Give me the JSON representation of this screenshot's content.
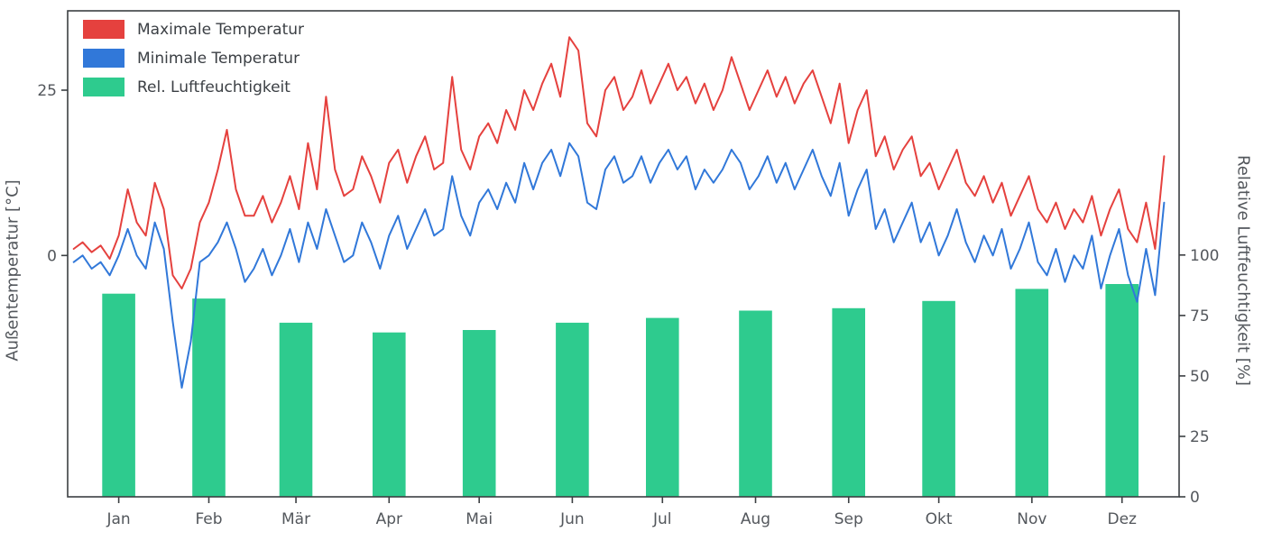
{
  "styles": {
    "background": "#ffffff",
    "spine_color": "#3b3f42",
    "tick_color": "#53575c",
    "text_color": "#53575c"
  },
  "chart_data": {
    "type": "mixed",
    "subtypes": [
      "line",
      "line",
      "bar"
    ],
    "title": "",
    "xlabel": "",
    "ylabel_left": "Außentemperatur [°C]",
    "ylabel_right": "Relative Luftfeuchtigkeit [%]",
    "legend_position": "upper left",
    "grid": false,
    "months": [
      "Jan",
      "Feb",
      "Mär",
      "Apr",
      "Mai",
      "Jun",
      "Jul",
      "Aug",
      "Sep",
      "Okt",
      "Nov",
      "Dez"
    ],
    "month_center_days": [
      15,
      45,
      74,
      105,
      135,
      166,
      196,
      227,
      258,
      288,
      319,
      349
    ],
    "x_domain_days": [
      -2,
      368
    ],
    "ylim_left": [
      -36.5,
      37
    ],
    "yticks_left": [
      0,
      25
    ],
    "ylim_right": [
      0,
      201
    ],
    "yticks_right": [
      0,
      25,
      50,
      75,
      100
    ],
    "day_step": 3,
    "bar_width_days": 11,
    "series": [
      {
        "name": "Maximale Temperatur",
        "type": "line",
        "axis": "left",
        "color": "#e5413e",
        "values": [
          1,
          2,
          0.5,
          1.5,
          -0.5,
          3,
          10,
          5,
          3,
          11,
          7,
          -3,
          -5,
          -2,
          5,
          8,
          13,
          19,
          10,
          6,
          6,
          9,
          5,
          8,
          12,
          7,
          17,
          10,
          24,
          13,
          9,
          10,
          15,
          12,
          8,
          14,
          16,
          11,
          15,
          18,
          13,
          14,
          27,
          16,
          13,
          18,
          20,
          17,
          22,
          19,
          25,
          22,
          26,
          29,
          24,
          33,
          31,
          20,
          18,
          25,
          27,
          22,
          24,
          28,
          23,
          26,
          29,
          25,
          27,
          23,
          26,
          22,
          25,
          30,
          26,
          22,
          25,
          28,
          24,
          27,
          23,
          26,
          28,
          24,
          20,
          26,
          17,
          22,
          25,
          15,
          18,
          13,
          16,
          18,
          12,
          14,
          10,
          13,
          16,
          11,
          9,
          12,
          8,
          11,
          6,
          9,
          12,
          7,
          5,
          8,
          4,
          7,
          5,
          9,
          3,
          7,
          10,
          4,
          2,
          8,
          1,
          15
        ]
      },
      {
        "name": "Minimale Temperatur",
        "type": "line",
        "axis": "left",
        "color": "#3178d9",
        "values": [
          -1,
          0,
          -2,
          -1,
          -3,
          0,
          4,
          0,
          -2,
          5,
          1,
          -10,
          -20,
          -13,
          -1,
          0,
          2,
          5,
          1,
          -4,
          -2,
          1,
          -3,
          0,
          4,
          -1,
          5,
          1,
          7,
          3,
          -1,
          0,
          5,
          2,
          -2,
          3,
          6,
          1,
          4,
          7,
          3,
          4,
          12,
          6,
          3,
          8,
          10,
          7,
          11,
          8,
          14,
          10,
          14,
          16,
          12,
          17,
          15,
          8,
          7,
          13,
          15,
          11,
          12,
          15,
          11,
          14,
          16,
          13,
          15,
          10,
          13,
          11,
          13,
          16,
          14,
          10,
          12,
          15,
          11,
          14,
          10,
          13,
          16,
          12,
          9,
          14,
          6,
          10,
          13,
          4,
          7,
          2,
          5,
          8,
          2,
          5,
          0,
          3,
          7,
          2,
          -1,
          3,
          0,
          4,
          -2,
          1,
          5,
          -1,
          -3,
          1,
          -4,
          0,
          -2,
          3,
          -5,
          0,
          4,
          -3,
          -7,
          1,
          -6,
          8
        ]
      },
      {
        "name": "Rel. Luftfeuchtigkeit",
        "type": "bar",
        "axis": "right",
        "color": "#2ecb8e",
        "values": [
          84,
          82,
          72,
          68,
          69,
          72,
          74,
          77,
          78,
          81,
          86,
          88
        ]
      }
    ]
  }
}
